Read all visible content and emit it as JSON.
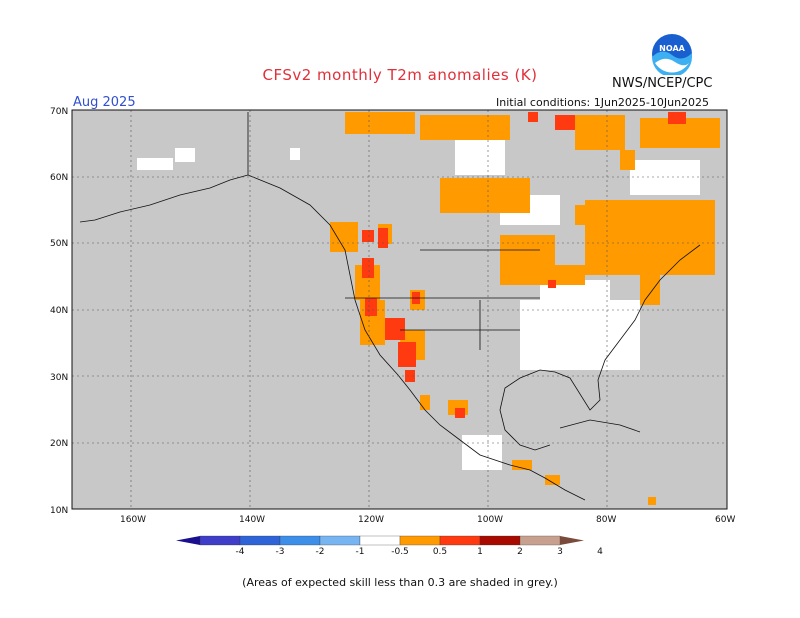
{
  "title": "CFSv2 monthly T2m anomalies (K)",
  "agency": "NWS/NCEP/CPC",
  "logo_text": "NOAA",
  "month": "Aug 2025",
  "initial_conditions": "Initial conditions: 1Jun2025-10Jun2025",
  "footnote": "(Areas of expected skill less than 0.3 are shaded in grey.)",
  "map": {
    "lon_range": [
      -170,
      -60
    ],
    "lat_range": [
      10,
      70
    ],
    "lat_ticks": [
      "10N",
      "20N",
      "30N",
      "40N",
      "50N",
      "60N",
      "70N"
    ],
    "lon_ticks": [
      "160W",
      "140W",
      "120W",
      "100W",
      "80W",
      "60W"
    ],
    "grid": "dashed",
    "background": "#c8c8c8"
  },
  "colorbar": {
    "labels": [
      "-4",
      "-3",
      "-2",
      "-1",
      "-0.5",
      "0.5",
      "1",
      "2",
      "3",
      "4"
    ],
    "colors": [
      "#1a0f8f",
      "#3e3ec8",
      "#2f64d8",
      "#3c8ee8",
      "#76b4f2",
      "#ffffff",
      "#ff9a00",
      "#ff3a10",
      "#a80a00",
      "#c8a090",
      "#7a4a3a"
    ]
  },
  "colors": {
    "skill_grey": "#c8c8c8",
    "land_white": "#ffffff",
    "orange": "#ff9a00",
    "red": "#ff3a10"
  }
}
